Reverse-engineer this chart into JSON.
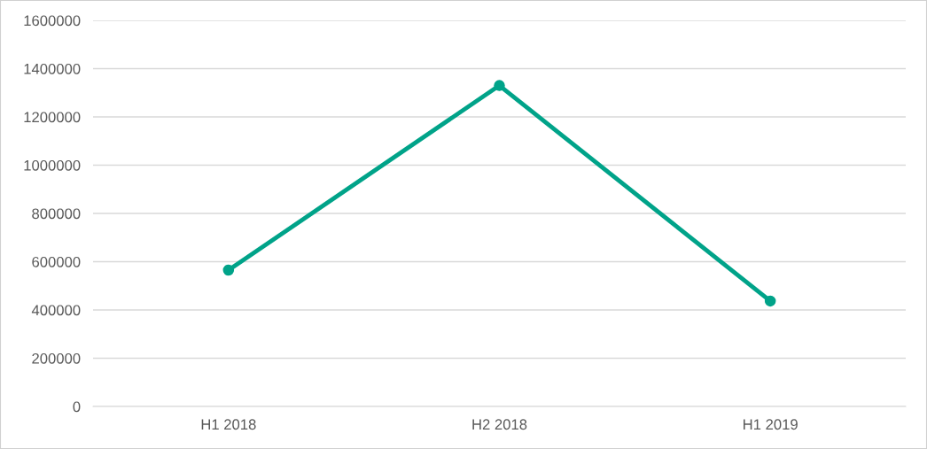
{
  "chart_data": {
    "type": "line",
    "categories": [
      "H1 2018",
      "H2 2018",
      "H1 2019"
    ],
    "series": [
      {
        "color": "#00a389",
        "values": [
          565000,
          1330000,
          437000
        ]
      }
    ],
    "ylim": [
      0,
      1600000
    ],
    "yticks": [
      0,
      200000,
      400000,
      600000,
      800000,
      1000000,
      1200000,
      1400000,
      1600000
    ],
    "grid": "y",
    "marker": "circle",
    "line_style": "solid"
  }
}
